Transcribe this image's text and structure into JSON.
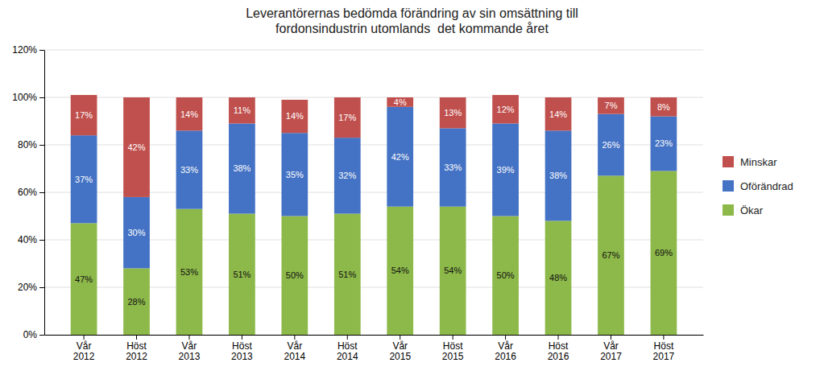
{
  "chart_data": {
    "type": "bar",
    "stacked": true,
    "title": "Leverantörernas bedömda förändring av sin omsättning till\nfordonsindustrin utomlands  det kommande året",
    "categories": [
      "Vår\n2012",
      "Höst\n2012",
      "Vår\n2013",
      "Höst\n2013",
      "Vår\n2014",
      "Höst\n2014",
      "Vår\n2015",
      "Höst\n2015",
      "Vår\n2016",
      "Höst\n2016",
      "Vår\n2017",
      "Höst\n2017"
    ],
    "series": [
      {
        "name": "Ökar",
        "color": "#8DB84A",
        "values": [
          47,
          28,
          53,
          51,
          50,
          51,
          54,
          54,
          50,
          48,
          67,
          69
        ],
        "value_labels": [
          "47%",
          "28%",
          "53%",
          "51%",
          "50%",
          "51%",
          "54%",
          "54%",
          "50%",
          "48%",
          "67%",
          "69%"
        ]
      },
      {
        "name": "Oförändrad",
        "color": "#4472C4",
        "values": [
          37,
          30,
          33,
          38,
          35,
          32,
          42,
          33,
          39,
          38,
          26,
          23
        ],
        "value_labels": [
          "37%",
          "30%",
          "33%",
          "38%",
          "35%",
          "32%",
          "42%",
          "33%",
          "39%",
          "38%",
          "26%",
          "23%"
        ]
      },
      {
        "name": "Minskar",
        "color": "#C0504D",
        "values": [
          17,
          42,
          14,
          11,
          14,
          17,
          4,
          13,
          12,
          14,
          7,
          8
        ],
        "value_labels": [
          "17%",
          "42%",
          "14%",
          "11%",
          "14%",
          "17%",
          "4%",
          "13%",
          "12%",
          "14%",
          "7%",
          "8%"
        ]
      }
    ],
    "ylim": [
      0,
      120
    ],
    "yticks": [
      {
        "value": 0,
        "label": "0%"
      },
      {
        "value": 20,
        "label": "20%"
      },
      {
        "value": 40,
        "label": "40%"
      },
      {
        "value": 60,
        "label": "60%"
      },
      {
        "value": 80,
        "label": "80%"
      },
      {
        "value": 100,
        "label": "100%"
      },
      {
        "value": 120,
        "label": "120%"
      }
    ],
    "grid": true,
    "data_labels": true,
    "legend": "right"
  }
}
